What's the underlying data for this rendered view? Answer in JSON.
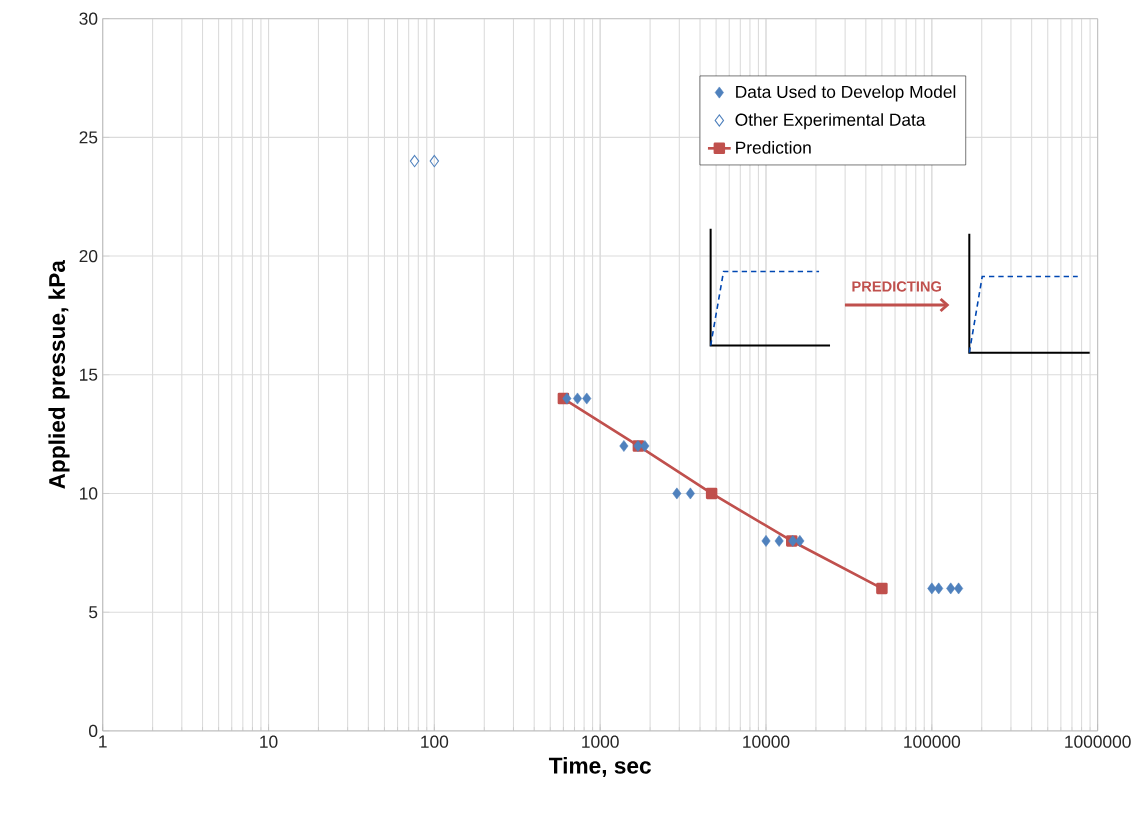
{
  "chart_data": {
    "type": "line",
    "xlabel": "Time, sec",
    "ylabel": "Applied pressue, kPa",
    "log": "x",
    "grid": true,
    "legend": "top right",
    "xlim": [
      1,
      1000000
    ],
    "xticks": [
      1,
      10,
      100,
      1000,
      10000,
      100000,
      1000000
    ],
    "ylim": [
      0,
      30
    ],
    "yticks": [
      0,
      5,
      10,
      15,
      20,
      25,
      30
    ],
    "annotations": [
      "PREDICTING"
    ],
    "series": [
      {
        "name": "Data Used to Develop Model",
        "type": "scatter",
        "marker": "diamond",
        "color": "#4f81bd",
        "x": [
          630,
          730,
          830,
          1390,
          1690,
          1860,
          2900,
          3500,
          10000,
          12000,
          14500,
          16000,
          100000,
          110000,
          130000,
          145000
        ],
        "values": [
          14,
          14,
          14,
          12,
          12,
          12,
          10,
          10,
          8,
          8,
          8,
          8,
          6,
          6,
          6,
          6
        ]
      },
      {
        "name": "Other Experimental Data",
        "type": "scatter",
        "marker": "diamond open",
        "color": "#4f81bd",
        "x": [
          76,
          100
        ],
        "values": [
          24,
          24
        ]
      },
      {
        "name": "Prediction",
        "marker": "square",
        "color": "#c0504d",
        "x": [
          600,
          1700,
          4700,
          14300,
          50000
        ],
        "values": [
          14,
          12,
          10,
          8,
          6
        ]
      }
    ]
  }
}
